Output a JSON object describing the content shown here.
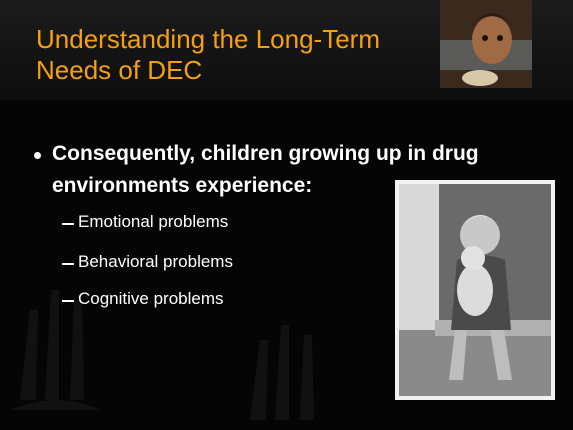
{
  "slide": {
    "title": "Understanding the Long-Term Needs of DEC",
    "bullet": "Consequently, children growing up in drug environments experience:",
    "sub_bullets": [
      "Emotional problems",
      "Behavioral problems",
      "Cognitive problems"
    ]
  }
}
